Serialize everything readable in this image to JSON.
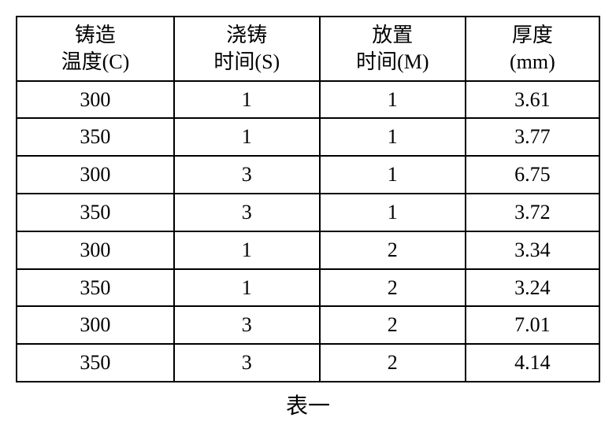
{
  "table": {
    "type": "table",
    "columns": [
      {
        "line1": "铸造",
        "line2": "温度(C)",
        "width": "27%",
        "align": "center"
      },
      {
        "line1": "浇铸",
        "line2": "时间(S)",
        "width": "25%",
        "align": "center"
      },
      {
        "line1": "放置",
        "line2": "时间(M)",
        "width": "25%",
        "align": "center"
      },
      {
        "line1": "厚度",
        "line2": "(mm)",
        "width": "23%",
        "align": "center"
      }
    ],
    "rows": [
      [
        "300",
        "1",
        "1",
        "3.61"
      ],
      [
        "350",
        "1",
        "1",
        "3.77"
      ],
      [
        "300",
        "3",
        "1",
        "6.75"
      ],
      [
        "350",
        "3",
        "1",
        "3.72"
      ],
      [
        "300",
        "1",
        "2",
        "3.34"
      ],
      [
        "350",
        "1",
        "2",
        "3.24"
      ],
      [
        "300",
        "3",
        "2",
        "7.01"
      ],
      [
        "350",
        "3",
        "2",
        "4.14"
      ]
    ],
    "caption": "表一",
    "border_color": "#000000",
    "border_width": 2,
    "background_color": "#ffffff",
    "text_color": "#000000",
    "header_fontsize": 26,
    "cell_fontsize": 26,
    "font_family": "SimSun"
  }
}
